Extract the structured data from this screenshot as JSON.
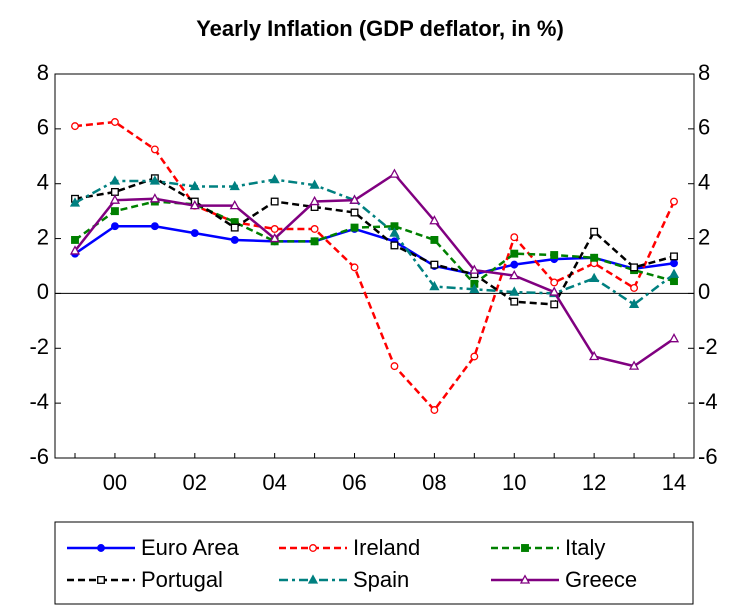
{
  "chart_data": {
    "type": "line",
    "title": "Yearly Inflation (GDP deflator, in %)",
    "categories": [
      null,
      "00",
      null,
      "02",
      null,
      "04",
      null,
      "06",
      null,
      "08",
      null,
      "10",
      null,
      "12",
      null,
      "14"
    ],
    "ylim": [
      -6,
      8
    ],
    "yticks": [
      -6,
      -4,
      -2,
      0,
      2,
      4,
      6,
      8
    ],
    "y2lim": [
      -6,
      8
    ],
    "y2ticks": [
      -6,
      -4,
      -2,
      0,
      2,
      4,
      6,
      8
    ],
    "legend": "bottom",
    "series": [
      {
        "name": "Euro Area",
        "color": "#0000ff",
        "dash": "solid",
        "marker": "circle",
        "filled": true,
        "values": [
          1.45,
          2.45,
          2.45,
          2.2,
          1.95,
          1.9,
          1.9,
          2.35,
          1.9,
          1.0,
          0.7,
          1.05,
          1.25,
          1.3,
          0.9,
          1.1
        ]
      },
      {
        "name": "Ireland",
        "color": "#ff0000",
        "dash": "dashed",
        "marker": "circle",
        "filled": false,
        "values": [
          6.1,
          6.25,
          5.25,
          3.2,
          2.6,
          2.35,
          2.35,
          0.95,
          -2.65,
          -4.25,
          -2.3,
          2.05,
          0.4,
          1.1,
          0.2,
          3.35
        ]
      },
      {
        "name": "Italy",
        "color": "#008000",
        "dash": "dashed",
        "marker": "square",
        "filled": true,
        "values": [
          1.95,
          3.0,
          3.35,
          3.25,
          2.6,
          1.9,
          1.9,
          2.4,
          2.45,
          1.95,
          0.35,
          1.45,
          1.4,
          1.3,
          0.85,
          0.45
        ]
      },
      {
        "name": "Portugal",
        "color": "#000000",
        "dash": "dashed",
        "marker": "square",
        "filled": false,
        "values": [
          3.45,
          3.7,
          4.2,
          3.35,
          2.4,
          3.35,
          3.15,
          2.95,
          1.75,
          1.05,
          0.7,
          -0.3,
          -0.4,
          2.25,
          0.95,
          1.35
        ]
      },
      {
        "name": "Spain",
        "color": "#008080",
        "dash": "dashdot",
        "marker": "triangle",
        "filled": true,
        "values": [
          3.3,
          4.1,
          4.1,
          3.9,
          3.9,
          4.15,
          3.95,
          3.4,
          2.2,
          0.25,
          0.15,
          0.05,
          0.0,
          0.55,
          -0.4,
          0.7
        ]
      },
      {
        "name": "Greece",
        "color": "#800080",
        "dash": "solid",
        "marker": "triangle",
        "filled": false,
        "values": [
          1.55,
          3.4,
          3.45,
          3.2,
          3.2,
          2.0,
          3.35,
          3.4,
          4.35,
          2.65,
          0.85,
          0.65,
          0.05,
          -2.3,
          -2.65,
          -1.65
        ]
      }
    ]
  }
}
